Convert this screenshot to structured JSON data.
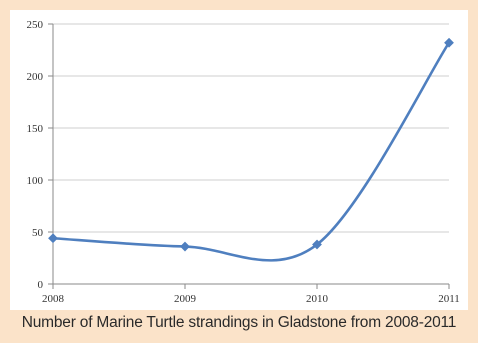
{
  "caption": "Number of Marine Turtle strandings in Gladstone from 2008-2011",
  "chart_data": {
    "type": "line",
    "x": [
      2008,
      2009,
      2010,
      2011
    ],
    "categories": [
      "2008",
      "2009",
      "2010",
      "2011"
    ],
    "series": [
      {
        "values": [
          44,
          36,
          38,
          232
        ]
      }
    ],
    "ylim": [
      0,
      250
    ],
    "yticks": [
      0,
      50,
      100,
      150,
      200,
      250
    ],
    "title": "",
    "xlabel": "",
    "ylabel": "",
    "grid": true,
    "smooth": true,
    "legend": "none",
    "colors": {
      "line": "#4f7fbf",
      "grid": "#cfcfcf",
      "plot_background": "#ffffff",
      "frame_background": "#fbe3c9"
    }
  }
}
